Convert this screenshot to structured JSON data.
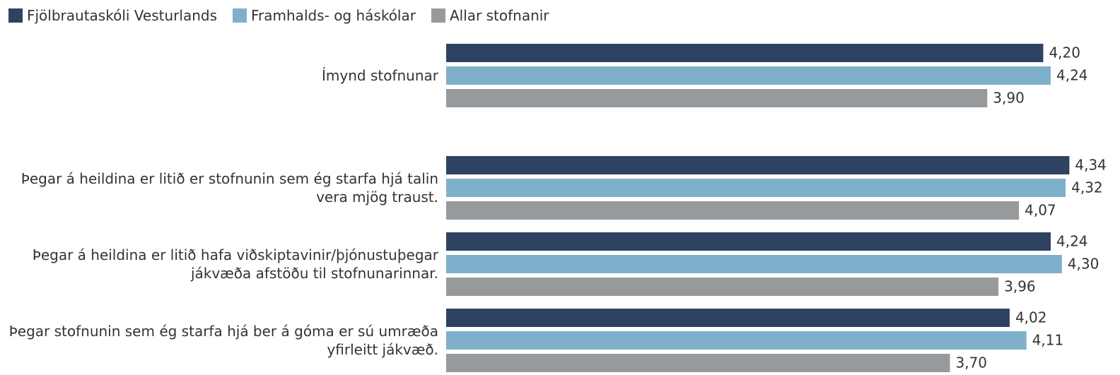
{
  "chart_data": {
    "type": "bar",
    "orientation": "horizontal",
    "categories": [
      "Ímynd stofnunar",
      "Þegar á heildina er litið er stofnunin sem ég starfa hjá talin vera mjög traust.",
      "Þegar á heildina er litið hafa viðskiptavinir/þjónustuþegar jákvæða afstöðu til stofnunarinnar.",
      "Þegar stofnunin sem ég starfa hjá ber á góma er sú umræða yfirleitt jákvæð."
    ],
    "series": [
      {
        "name": "Fjölbrautaskóli Vesturlands",
        "color": "#2e4262",
        "values": [
          4.2,
          4.34,
          4.24,
          4.02
        ],
        "value_labels": [
          "4,20",
          "4,34",
          "4,24",
          "4,02"
        ]
      },
      {
        "name": "Framhalds- og háskólar",
        "color": "#7fb0cb",
        "values": [
          4.24,
          4.32,
          4.3,
          4.11
        ],
        "value_labels": [
          "4,24",
          "4,32",
          "4,30",
          "4,11"
        ]
      },
      {
        "name": "Allar stofnanir",
        "color": "#969a9d",
        "values": [
          3.9,
          4.07,
          3.96,
          3.7
        ],
        "value_labels": [
          "3,90",
          "4,07",
          "3,96",
          "3,70"
        ]
      }
    ],
    "xlim": [
      1,
      4.6
    ],
    "legend": "top-left"
  }
}
